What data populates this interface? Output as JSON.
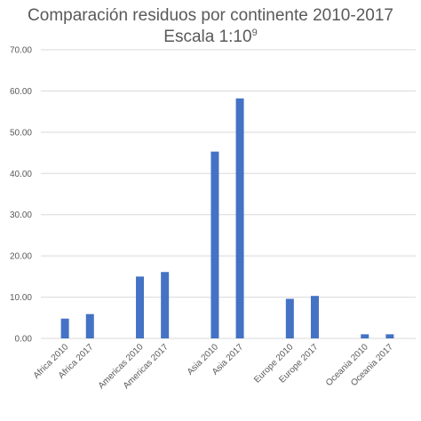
{
  "chart_data": {
    "type": "bar",
    "title_line1": "Comparación residuos por continente 2010-2017",
    "title_line2": "Escala 1:10",
    "title_superscript": "9",
    "categories": [
      "Africa 2010",
      "Africa 2017",
      "",
      "Americas 2010",
      "Americas 2017",
      "",
      "Asia 2010",
      "Asia 2017",
      "",
      "Europe 2010",
      "Europe 2017",
      "",
      "Oceania 2010",
      "Oceania 2017"
    ],
    "values": [
      4.8,
      5.9,
      null,
      15.0,
      16.1,
      null,
      45.3,
      58.2,
      null,
      9.6,
      10.3,
      null,
      1.0,
      1.0
    ],
    "xlabel": "",
    "ylabel": "",
    "ylim": [
      0,
      70
    ],
    "yticks": [
      "0.00",
      "10.00",
      "20.00",
      "30.00",
      "40.00",
      "50.00",
      "60.00",
      "70.00"
    ],
    "grid": true,
    "bar_color": "#4472C4",
    "grid_color": "#d9d9d9",
    "text_color": "#595959"
  }
}
